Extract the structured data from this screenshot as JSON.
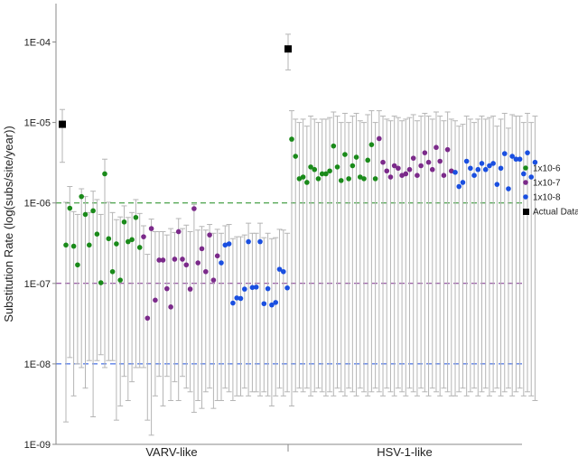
{
  "chart_data": {
    "type": "scatter",
    "ylabel": "Substitution Rate (log(subs/site/year))",
    "xlabel": "",
    "y_scale": "log",
    "ylim": [
      1e-09,
      0.0003
    ],
    "y_ticks": [
      {
        "value": 0.0001,
        "label": "1E-04"
      },
      {
        "value": 1e-05,
        "label": "1E-05"
      },
      {
        "value": 1e-06,
        "label": "1E-06"
      },
      {
        "value": 1e-07,
        "label": "1E-07"
      },
      {
        "value": 1e-08,
        "label": "1E-08"
      },
      {
        "value": 1e-09,
        "label": "1E-09"
      }
    ],
    "categories": [
      "VARV-like",
      "HSV-1-like"
    ],
    "legend": {
      "placement": "right",
      "entries": [
        {
          "label": "1x10-6",
          "color": "#1a8a1a",
          "marker": "circle"
        },
        {
          "label": "1x10-7",
          "color": "#7b2a8a",
          "marker": "circle"
        },
        {
          "label": "1x10-8",
          "color": "#1a4fe0",
          "marker": "circle"
        },
        {
          "label": "Actual Data",
          "color": "#000000",
          "marker": "square"
        }
      ]
    },
    "reference_lines": [
      {
        "value": 1e-06,
        "color": "#1a8a1a",
        "style": "dashed"
      },
      {
        "value": 1e-07,
        "color": "#7b2a8a",
        "style": "dashed"
      },
      {
        "value": 1e-08,
        "color": "#1a4fe0",
        "style": "dashed"
      }
    ],
    "actual_data": [
      {
        "category": "VARV-like",
        "y": 9.5e-06,
        "low": 3.2e-06,
        "high": 1.45e-05
      },
      {
        "category": "HSV-1-like",
        "y": 8.2e-05,
        "low": 4.5e-05,
        "high": 0.000125
      }
    ],
    "series": [
      {
        "name": "1x10-6",
        "group": "VARV-like",
        "values": [
          3e-07,
          8.6e-07,
          2.9e-07,
          1.7e-07,
          1.2e-06,
          7.2e-07,
          3e-07,
          8e-07,
          4.1e-07,
          1.02e-07,
          2.3e-06,
          3.6e-07,
          1.4e-07,
          3.1e-07,
          1.1e-07,
          5.8e-07,
          3.3e-07,
          3.5e-07,
          6.6e-07,
          2.8e-07
        ],
        "low": [
          1.9e-09,
          1.2e-08,
          4e-09,
          1e-08,
          9e-09,
          5e-09,
          1.1e-08,
          2.2e-09,
          1.1e-08,
          1.3e-08,
          9e-09,
          1.1e-08,
          1.1e-08,
          2e-09,
          3e-09,
          7e-09,
          3.5e-09,
          6e-09,
          9e-09,
          9e-09
        ],
        "high": [
          1.02e-06,
          1.6e-06,
          7.8e-07,
          7.2e-07,
          1.5e-06,
          1.2e-06,
          7.6e-07,
          1.4e-06,
          1.1e-06,
          7.2e-07,
          3.5e-06,
          1.02e-06,
          7.6e-07,
          6.2e-07,
          6.7e-07,
          9.2e-07,
          6.6e-07,
          7.6e-07,
          1.1e-06,
          7.4e-07
        ]
      },
      {
        "name": "1x10-7",
        "group": "VARV-like",
        "values": [
          3.8e-07,
          3.7e-08,
          4.8e-07,
          6.2e-08,
          1.95e-07,
          1.95e-07,
          8.6e-08,
          5.1e-08,
          2e-07,
          4.4e-07,
          2e-07,
          1.7e-07,
          8.5e-08,
          8.5e-07,
          1.8e-07,
          2.7e-07,
          1.4e-07,
          4e-07,
          1.1e-07,
          2.2e-07
        ],
        "low": [
          9e-09,
          2e-09,
          1.3e-09,
          4e-09,
          7e-09,
          3e-09,
          7e-09,
          3.5e-09,
          6e-09,
          3.5e-09,
          7e-09,
          5e-09,
          4.5e-09,
          2.5e-09,
          3.5e-09,
          2.8e-09,
          4.5e-09,
          5e-09,
          2.8e-09,
          3.5e-09
        ],
        "high": [
          5.2e-07,
          2.3e-07,
          6.3e-07,
          4.4e-07,
          4.4e-07,
          4.4e-07,
          4e-07,
          4.8e-07,
          4.3e-07,
          6.4e-07,
          4.8e-07,
          5.3e-07,
          4.4e-07,
          9.6e-07,
          4.6e-07,
          5.1e-07,
          4.6e-07,
          5.4e-07,
          4.2e-07,
          4.7e-07
        ]
      },
      {
        "name": "1x10-8",
        "group": "VARV-like",
        "values": [
          1.8e-07,
          3e-07,
          3.1e-07,
          5.7e-08,
          6.6e-08,
          6.5e-08,
          8.5e-08,
          3.3e-07,
          8.9e-08,
          9e-08,
          3.3e-07,
          5.6e-08,
          8.6e-08,
          5.4e-08,
          5.8e-08,
          1.5e-07,
          1.4e-07,
          8.8e-08
        ],
        "low": [
          3.5e-09,
          5e-09,
          4.5e-09,
          3.5e-09,
          4e-09,
          4e-09,
          5e-09,
          4e-09,
          4.5e-09,
          4.5e-09,
          4e-09,
          4.5e-09,
          4e-09,
          3e-09,
          4e-09,
          5e-09,
          4e-09,
          4.5e-09
        ],
        "high": [
          4.2e-07,
          5.2e-07,
          5.4e-07,
          3.6e-07,
          3.8e-07,
          3.8e-07,
          4e-07,
          5.6e-07,
          4.2e-07,
          4.2e-07,
          5.6e-07,
          3.7e-07,
          4.2e-07,
          3.6e-07,
          3.7e-07,
          4.7e-07,
          4.6e-07,
          4.2e-07
        ]
      },
      {
        "name": "1x10-6",
        "group": "HSV-1-like",
        "values": [
          6.2e-06,
          3.8e-06,
          2e-06,
          2.1e-06,
          1.8e-06,
          2.8e-06,
          2.6e-06,
          2e-06,
          2.3e-06,
          2.3e-06,
          2.5e-06,
          5.1e-06,
          2.8e-06,
          1.9e-06,
          4e-06,
          2e-06,
          2.9e-06,
          3.7e-06,
          2.1e-06,
          2e-06,
          3.4e-06,
          5.3e-06,
          2e-06
        ],
        "low": [
          3e-09,
          4.5e-09,
          5e-09,
          4.5e-09,
          5e-09,
          4e-09,
          4.5e-09,
          5e-09,
          4.5e-09,
          4e-09,
          4.5e-09,
          4e-09,
          5e-09,
          4.5e-09,
          4e-09,
          5e-09,
          4.5e-09,
          4e-09,
          5e-09,
          4.5e-09,
          4e-09,
          4.5e-09,
          5e-09
        ],
        "high": [
          1.4e-05,
          1.1e-05,
          1e-05,
          1.1e-05,
          9e-06,
          1.2e-05,
          1.1e-05,
          1e-05,
          1.1e-05,
          1.1e-05,
          1.15e-05,
          1.35e-05,
          1.2e-05,
          1e-05,
          1.3e-05,
          1e-05,
          1.2e-05,
          1.3e-05,
          1.05e-05,
          1e-05,
          1.25e-05,
          1.4e-05,
          1e-05
        ]
      },
      {
        "name": "1x10-7",
        "group": "HSV-1-like",
        "values": [
          6.3e-06,
          3.2e-06,
          2.5e-06,
          2.1e-06,
          2.9e-06,
          2.7e-06,
          2.2e-06,
          2.3e-06,
          2.6e-06,
          3.6e-06,
          2.2e-06,
          2.9e-06,
          4.2e-06,
          3.2e-06,
          2.6e-06,
          4.9e-06,
          3.3e-06,
          2.2e-06,
          4.6e-06,
          2.5e-06
        ],
        "low": [
          4.5e-09,
          4e-09,
          5e-09,
          4.5e-09,
          4e-09,
          5e-09,
          4.5e-09,
          4e-09,
          5e-09,
          4.5e-09,
          4e-09,
          5e-09,
          4.5e-09,
          4e-09,
          5e-09,
          4.5e-09,
          4e-09,
          5e-09,
          4.5e-09,
          4e-09
        ],
        "high": [
          1.4e-05,
          1.2e-05,
          1.1e-05,
          1.05e-05,
          1.2e-05,
          1.15e-05,
          1.05e-05,
          1.1e-05,
          1.15e-05,
          1.25e-05,
          1.05e-05,
          1.2e-05,
          1.3e-05,
          1.2e-05,
          1.1e-05,
          1.35e-05,
          1.2e-05,
          1.05e-05,
          1.35e-05,
          1.1e-05
        ]
      },
      {
        "name": "1x10-8",
        "group": "HSV-1-like",
        "values": [
          2.4e-06,
          1.6e-06,
          1.8e-06,
          3.3e-06,
          2.7e-06,
          2.2e-06,
          2.6e-06,
          3.1e-06,
          2.6e-06,
          2.9e-06,
          3.1e-06,
          1.7e-06,
          2.7e-06,
          4.1e-06,
          1.5e-06,
          3.8e-06,
          3.5e-06,
          3.5e-06,
          2.3e-06,
          4.2e-06,
          2.1e-06,
          3.2e-06
        ],
        "low": [
          4e-09,
          4.5e-09,
          5e-09,
          4e-09,
          4.5e-09,
          5e-09,
          4e-09,
          4.5e-09,
          5e-09,
          4e-09,
          4.5e-09,
          5e-09,
          4e-09,
          4.5e-09,
          5e-09,
          4e-09,
          4.5e-09,
          5e-09,
          4e-09,
          4.5e-09,
          4e-09,
          3.5e-09
        ],
        "high": [
          1.05e-05,
          9e-06,
          9.5e-06,
          1.2e-05,
          1.1e-05,
          1e-05,
          1.1e-05,
          1.2e-05,
          1.1e-05,
          1.15e-05,
          1.2e-05,
          9e-06,
          1.1e-05,
          1.3e-05,
          8.5e-06,
          1.25e-05,
          1.2e-05,
          1.2e-05,
          1e-05,
          1.3e-05,
          1e-05,
          1.2e-05
        ]
      }
    ]
  }
}
